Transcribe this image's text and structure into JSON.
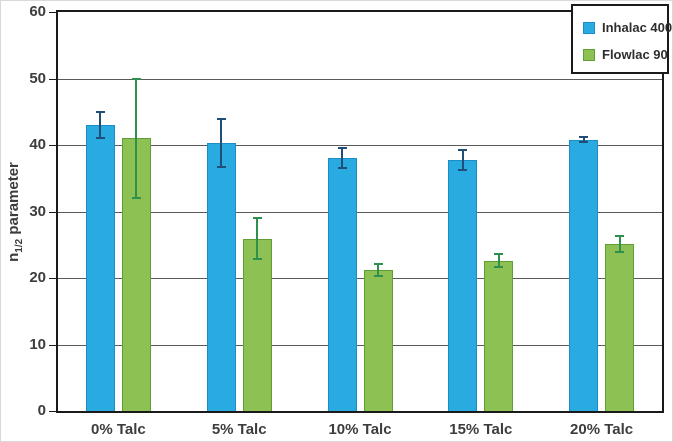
{
  "chart_data": {
    "type": "bar",
    "title": "",
    "xlabel": "",
    "ylabel": "n1/2 parameter",
    "ylabel_parts": {
      "base": "n",
      "sub": "1/2",
      "rest": " parameter"
    },
    "categories": [
      "0% Talc",
      "5% Talc",
      "10% Talc",
      "15% Talc",
      "20% Talc"
    ],
    "series": [
      {
        "name": "Inhalac 400",
        "color": "#29abe2",
        "border_color": "#1b8ec6",
        "error_color": "#1f4e79",
        "values": [
          43.0,
          40.3,
          38.0,
          37.7,
          40.8
        ],
        "errors": [
          2.0,
          3.6,
          1.5,
          1.5,
          0.4
        ]
      },
      {
        "name": "Flowlac 90",
        "color": "#8dc153",
        "border_color": "#5fa035",
        "error_color": "#2f8f4f",
        "values": [
          41.0,
          25.9,
          21.2,
          22.6,
          25.1
        ],
        "errors": [
          8.9,
          3.1,
          0.9,
          1.0,
          1.2
        ]
      }
    ],
    "ylim": [
      0,
      60
    ],
    "yticks": [
      0,
      10,
      20,
      30,
      40,
      50,
      60
    ],
    "grid": true,
    "legend_position": "top-right",
    "style": {
      "grid_color": "#5a5a5a",
      "axis_color": "#1a1a1a",
      "text_color": "#3d3d3d",
      "background": "#ffffff"
    }
  }
}
